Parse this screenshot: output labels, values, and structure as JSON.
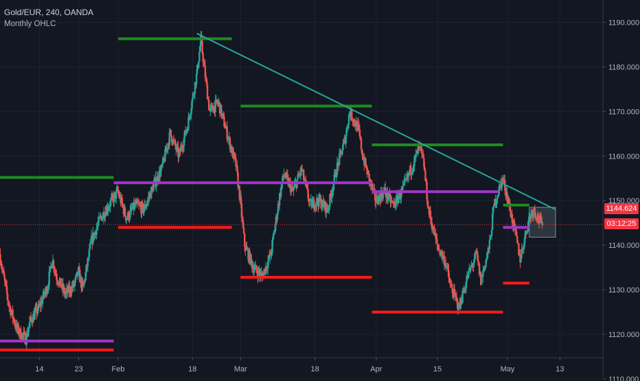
{
  "header": {
    "symbol_line": "Gold/EUR, 240, OANDA",
    "subtitle": "Monthly OHLC"
  },
  "price_tags": {
    "last_price": "1144.624",
    "countdown": "03:12:25"
  },
  "colors": {
    "background": "#131722",
    "grid": "#1e222d",
    "up_candle": "#26a69a",
    "down_candle": "#ef5350",
    "resistance": "#1e8c1e",
    "support": "#ff1a1a",
    "pivot": "#a335c9",
    "trendline": "#26a69a",
    "axis_text": "#b2b5be"
  },
  "chart_data": {
    "type": "candlestick",
    "title": "Gold/EUR, 240, OANDA",
    "subtitle": "Monthly OHLC",
    "y_axis": {
      "min": 1110,
      "max": 1195,
      "ticks": [
        1110,
        1120,
        1130,
        1140,
        1150,
        1160,
        1170,
        1180,
        1190
      ],
      "tick_labels": [
        "1110.000",
        "1120.000",
        "1130.000",
        "1140.000",
        "1150.000",
        "1160.000",
        "1170.000",
        "1180.000",
        "1190.000"
      ]
    },
    "x_axis": {
      "start": "2019-01-05",
      "end": "2019-05-20",
      "tick_labels": [
        {
          "date": "2019-01-14",
          "label": "14"
        },
        {
          "date": "2019-01-23",
          "label": "23"
        },
        {
          "date": "2019-02-01",
          "label": "Feb"
        },
        {
          "date": "2019-02-18",
          "label": "18"
        },
        {
          "date": "2019-03-01",
          "label": "Mar"
        },
        {
          "date": "2019-03-18",
          "label": "18"
        },
        {
          "date": "2019-04-01",
          "label": "Apr"
        },
        {
          "date": "2019-04-15",
          "label": "15"
        },
        {
          "date": "2019-05-01",
          "label": "May"
        },
        {
          "date": "2019-05-13",
          "label": "13"
        }
      ]
    },
    "grid": true,
    "last_price": 1144.624,
    "price_path": [
      [
        "2019-01-05",
        1138
      ],
      [
        "2019-01-07",
        1127
      ],
      [
        "2019-01-09",
        1121
      ],
      [
        "2019-01-11",
        1119
      ],
      [
        "2019-01-12",
        1123
      ],
      [
        "2019-01-14",
        1126
      ],
      [
        "2019-01-16",
        1131
      ],
      [
        "2019-01-17",
        1137
      ],
      [
        "2019-01-18",
        1133
      ],
      [
        "2019-01-20",
        1129
      ],
      [
        "2019-01-22",
        1131
      ],
      [
        "2019-01-23",
        1134
      ],
      [
        "2019-01-24",
        1130
      ],
      [
        "2019-01-26",
        1141
      ],
      [
        "2019-01-28",
        1146
      ],
      [
        "2019-01-30",
        1149
      ],
      [
        "2019-02-01",
        1152
      ],
      [
        "2019-02-03",
        1146
      ],
      [
        "2019-02-05",
        1149
      ],
      [
        "2019-02-07",
        1148
      ],
      [
        "2019-02-09",
        1153
      ],
      [
        "2019-02-11",
        1157
      ],
      [
        "2019-02-13",
        1165
      ],
      [
        "2019-02-15",
        1160
      ],
      [
        "2019-02-17",
        1167
      ],
      [
        "2019-02-19",
        1178
      ],
      [
        "2019-02-20",
        1186
      ],
      [
        "2019-02-21",
        1178
      ],
      [
        "2019-02-22",
        1170
      ],
      [
        "2019-02-24",
        1172
      ],
      [
        "2019-02-26",
        1165
      ],
      [
        "2019-02-28",
        1158
      ],
      [
        "2019-03-01",
        1150
      ],
      [
        "2019-03-02",
        1140
      ],
      [
        "2019-03-04",
        1135
      ],
      [
        "2019-03-06",
        1133
      ],
      [
        "2019-03-08",
        1138
      ],
      [
        "2019-03-10",
        1151
      ],
      [
        "2019-03-11",
        1156
      ],
      [
        "2019-03-13",
        1152
      ],
      [
        "2019-03-15",
        1157
      ],
      [
        "2019-03-17",
        1149
      ],
      [
        "2019-03-19",
        1150
      ],
      [
        "2019-03-21",
        1148
      ],
      [
        "2019-03-23",
        1157
      ],
      [
        "2019-03-25",
        1164
      ],
      [
        "2019-03-26",
        1170
      ],
      [
        "2019-03-28",
        1166
      ],
      [
        "2019-03-29",
        1160
      ],
      [
        "2019-03-31",
        1153
      ],
      [
        "2019-04-01",
        1150
      ],
      [
        "2019-04-03",
        1152
      ],
      [
        "2019-04-05",
        1149
      ],
      [
        "2019-04-07",
        1152
      ],
      [
        "2019-04-09",
        1157
      ],
      [
        "2019-04-11",
        1162
      ],
      [
        "2019-04-12",
        1158
      ],
      [
        "2019-04-13",
        1148
      ],
      [
        "2019-04-15",
        1140
      ],
      [
        "2019-04-17",
        1136
      ],
      [
        "2019-04-18",
        1131
      ],
      [
        "2019-04-20",
        1126
      ],
      [
        "2019-04-22",
        1133
      ],
      [
        "2019-04-24",
        1138
      ],
      [
        "2019-04-25",
        1132
      ],
      [
        "2019-04-27",
        1140
      ],
      [
        "2019-04-28",
        1149
      ],
      [
        "2019-04-30",
        1155
      ],
      [
        "2019-05-01",
        1151
      ],
      [
        "2019-05-03",
        1142
      ],
      [
        "2019-05-04",
        1137
      ],
      [
        "2019-05-06",
        1146
      ],
      [
        "2019-05-07",
        1148
      ],
      [
        "2019-05-09",
        1144.624
      ]
    ],
    "horizontal_lines": [
      {
        "role": "resistance",
        "y": 1186.3,
        "from": "2019-02-01",
        "to": "2019-02-27"
      },
      {
        "role": "resistance",
        "y": 1171.2,
        "from": "2019-03-01",
        "to": "2019-03-31"
      },
      {
        "role": "resistance",
        "y": 1162.5,
        "from": "2019-03-31",
        "to": "2019-04-30"
      },
      {
        "role": "resistance",
        "y": 1155.2,
        "from": "2019-01-05",
        "to": "2019-01-31"
      },
      {
        "role": "resistance",
        "y": 1149.0,
        "from": "2019-04-30",
        "to": "2019-05-06"
      },
      {
        "role": "pivot",
        "y": 1154.0,
        "from": "2019-01-31",
        "to": "2019-03-31"
      },
      {
        "role": "pivot",
        "y": 1152.0,
        "from": "2019-03-31",
        "to": "2019-04-29"
      },
      {
        "role": "pivot",
        "y": 1144.0,
        "from": "2019-04-30",
        "to": "2019-05-06"
      },
      {
        "role": "pivot",
        "y": 1118.5,
        "from": "2019-01-05",
        "to": "2019-01-31"
      },
      {
        "role": "support",
        "y": 1144.0,
        "from": "2019-02-01",
        "to": "2019-02-27"
      },
      {
        "role": "support",
        "y": 1132.8,
        "from": "2019-03-01",
        "to": "2019-03-31"
      },
      {
        "role": "support",
        "y": 1125.0,
        "from": "2019-03-31",
        "to": "2019-04-30"
      },
      {
        "role": "support",
        "y": 1116.5,
        "from": "2019-01-05",
        "to": "2019-01-31"
      },
      {
        "role": "support",
        "y": 1131.5,
        "from": "2019-04-30",
        "to": "2019-05-06"
      }
    ],
    "trendline": {
      "from": [
        "2019-02-19",
        1187.5
      ],
      "to": [
        "2019-05-12",
        1148.0
      ]
    },
    "range_box": {
      "from": "2019-05-06",
      "to": "2019-05-12",
      "y_high": 1148.5,
      "y_low": 1141.8
    }
  }
}
